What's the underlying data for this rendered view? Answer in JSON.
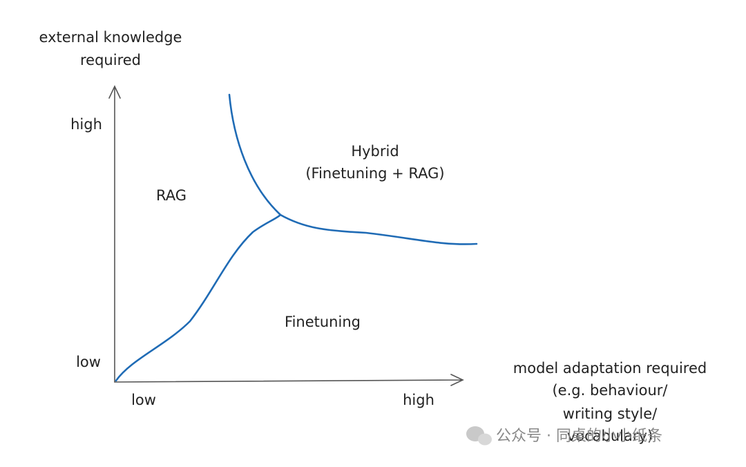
{
  "y_axis": {
    "title": [
      "external knowledge",
      "required"
    ],
    "ticks": [
      "high",
      "low"
    ]
  },
  "x_axis": {
    "title": [
      "model adaptation required",
      "(e.g. behaviour/",
      "writing style/",
      "vocabulary)"
    ],
    "ticks": [
      "low",
      "high"
    ]
  },
  "regions": {
    "rag": "RAG",
    "hybrid": [
      "Hybrid",
      "(Finetuning + RAG)"
    ],
    "finetuning": "Finetuning"
  },
  "watermark": "公众号 · 同桌的小小纸条"
}
